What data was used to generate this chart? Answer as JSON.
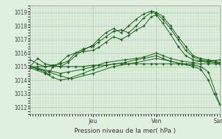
{
  "bg_color": "#dff0df",
  "plot_bg_color": "#dff0df",
  "grid_color": "#adc8ad",
  "line_color": "#1a5c1a",
  "marker_color": "#1a5c1a",
  "xlabel": "Pression niveau de la mer( hPa )",
  "ylim": [
    1011.5,
    1019.5
  ],
  "yticks": [
    1012,
    1013,
    1014,
    1015,
    1016,
    1017,
    1018,
    1019
  ],
  "xlim": [
    0,
    1.0
  ],
  "day_labels": [
    "Jeu",
    "Ven",
    "Sam"
  ],
  "day_positions": [
    0.333,
    0.666,
    1.0
  ],
  "lines": [
    [
      0.0,
      1015.0,
      0.04,
      1015.6,
      0.08,
      1015.2,
      0.12,
      1015.1,
      0.16,
      1015.0,
      0.2,
      1015.3,
      0.24,
      1015.8,
      0.28,
      1016.2,
      0.32,
      1016.5,
      0.333,
      1016.6,
      0.36,
      1017.0,
      0.4,
      1017.5,
      0.44,
      1017.8,
      0.48,
      1017.5,
      0.52,
      1018.0,
      0.56,
      1018.5,
      0.6,
      1018.9,
      0.64,
      1019.1,
      0.666,
      1019.0,
      0.7,
      1018.7,
      0.74,
      1018.0,
      0.78,
      1017.2,
      0.82,
      1016.5,
      0.86,
      1015.8,
      0.9,
      1015.6,
      0.94,
      1015.5,
      0.98,
      1015.4,
      1.0,
      1015.3
    ],
    [
      0.0,
      1015.5,
      0.04,
      1015.2,
      0.08,
      1015.0,
      0.12,
      1015.1,
      0.16,
      1015.2,
      0.2,
      1015.4,
      0.24,
      1016.0,
      0.28,
      1016.3,
      0.333,
      1016.5,
      0.36,
      1016.8,
      0.4,
      1017.2,
      0.44,
      1017.6,
      0.48,
      1017.7,
      0.52,
      1017.5,
      0.56,
      1018.0,
      0.6,
      1018.6,
      0.64,
      1019.0,
      0.666,
      1018.9,
      0.7,
      1018.5,
      0.74,
      1017.8,
      0.78,
      1017.0,
      0.82,
      1016.2,
      0.86,
      1015.7,
      0.9,
      1015.5,
      0.94,
      1015.4,
      0.98,
      1015.3,
      1.0,
      1015.2
    ],
    [
      0.0,
      1015.0,
      0.04,
      1014.8,
      0.08,
      1014.6,
      0.1,
      1014.4,
      0.12,
      1015.0,
      0.16,
      1015.3,
      0.2,
      1015.8,
      0.24,
      1016.0,
      0.28,
      1016.1,
      0.333,
      1016.2,
      0.36,
      1016.4,
      0.4,
      1016.8,
      0.44,
      1017.2,
      0.48,
      1017.0,
      0.52,
      1017.3,
      0.56,
      1017.7,
      0.6,
      1018.0,
      0.64,
      1018.7,
      0.666,
      1018.8,
      0.7,
      1018.2,
      0.74,
      1017.4,
      0.78,
      1016.5,
      0.82,
      1015.8,
      0.86,
      1015.5,
      0.9,
      1015.4,
      0.94,
      1015.3,
      0.98,
      1015.3,
      1.0,
      1015.2
    ],
    [
      0.0,
      1015.0,
      0.04,
      1015.0,
      0.08,
      1015.0,
      0.12,
      1015.0,
      0.16,
      1015.0,
      0.2,
      1015.0,
      0.24,
      1015.0,
      0.28,
      1015.0,
      0.333,
      1015.1,
      0.36,
      1015.1,
      0.4,
      1015.1,
      0.44,
      1015.2,
      0.48,
      1015.2,
      0.52,
      1015.2,
      0.56,
      1015.2,
      0.6,
      1015.2,
      0.64,
      1015.2,
      0.666,
      1015.2,
      0.7,
      1015.2,
      0.74,
      1015.2,
      0.78,
      1015.2,
      0.82,
      1015.2,
      0.86,
      1015.2,
      0.9,
      1015.2,
      0.94,
      1015.2,
      0.98,
      1015.2,
      1.0,
      1015.2
    ],
    [
      0.0,
      1015.0,
      0.1,
      1014.7,
      0.16,
      1014.5,
      0.2,
      1014.6,
      0.28,
      1014.8,
      0.333,
      1015.0,
      0.4,
      1015.3,
      0.5,
      1015.5,
      0.56,
      1015.6,
      0.6,
      1015.7,
      0.666,
      1016.0,
      0.7,
      1015.8,
      0.74,
      1015.6,
      0.8,
      1015.4,
      0.86,
      1015.3,
      0.9,
      1015.4,
      0.94,
      1015.4,
      1.0,
      1015.5
    ],
    [
      0.0,
      1014.9,
      0.08,
      1014.5,
      0.12,
      1014.2,
      0.16,
      1014.0,
      0.2,
      1014.1,
      0.28,
      1014.5,
      0.333,
      1014.8,
      0.4,
      1015.1,
      0.5,
      1015.3,
      0.56,
      1015.5,
      0.6,
      1015.6,
      0.666,
      1015.8,
      0.7,
      1015.6,
      0.74,
      1015.4,
      0.8,
      1015.2,
      0.86,
      1015.1,
      0.9,
      1015.0,
      0.94,
      1014.6,
      0.98,
      1013.0,
      1.0,
      1012.2
    ],
    [
      0.0,
      1015.0,
      0.1,
      1014.6,
      0.16,
      1014.3,
      0.22,
      1014.1,
      0.333,
      1014.5,
      0.44,
      1015.0,
      0.56,
      1015.3,
      0.666,
      1015.6,
      0.74,
      1015.4,
      0.8,
      1015.2,
      0.86,
      1015.0,
      0.9,
      1014.8,
      0.94,
      1014.0,
      0.97,
      1013.0,
      1.0,
      1012.2
    ]
  ]
}
